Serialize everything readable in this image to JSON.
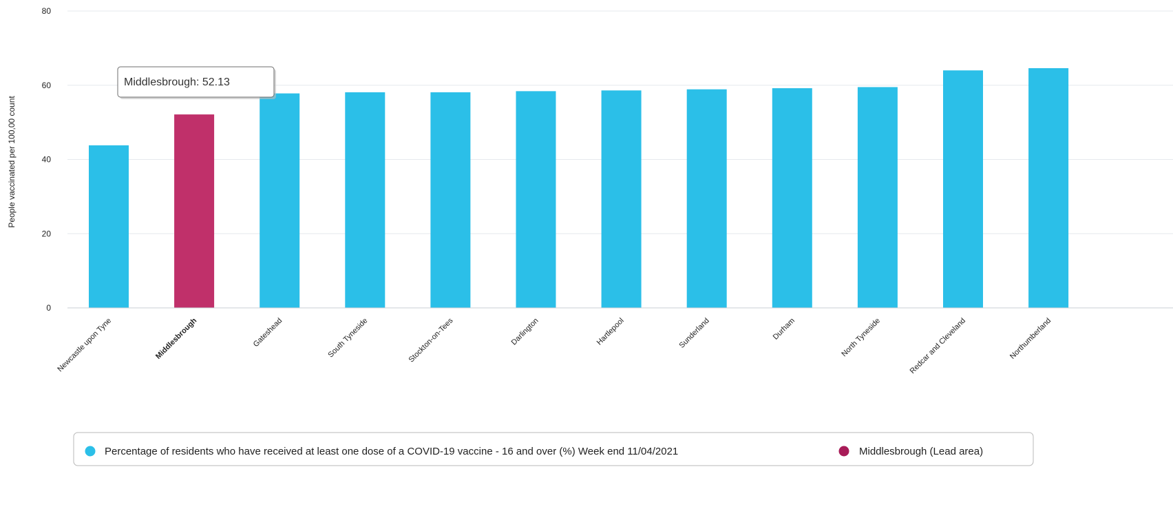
{
  "chart_data": {
    "type": "bar",
    "ylabel": "People vaccinated per 100,00 count",
    "ylim": [
      0,
      80
    ],
    "yticks": [
      "0",
      "20",
      "40",
      "60",
      "80"
    ],
    "ytick_values": [
      0,
      20,
      40,
      60,
      80
    ],
    "grid": true,
    "categories": [
      "Newcastle upon Tyne",
      "Middlesbrough",
      "Gateshead",
      "South Tyneside",
      "Stockton-on-Tees",
      "Darlington",
      "Hartlepool",
      "Sunderland",
      "Durham",
      "North Tyneside",
      "Redcar and Cleveland",
      "Northumberland"
    ],
    "values": [
      43.8,
      52.13,
      57.8,
      58.1,
      58.1,
      58.4,
      58.6,
      58.9,
      59.2,
      59.5,
      64.0,
      64.6
    ],
    "lead_area_index": 1,
    "series_color": "#2bbfe8",
    "lead_color": "#c0306a",
    "legend_lead_color": "#a81c58",
    "tooltip": {
      "text": "Middlesbrough: 52.13"
    },
    "legend": {
      "placement": "bottom",
      "items": [
        {
          "label": "Percentage of residents who have received at least one dose of a COVID-19 vaccine - 16 and over (%) Week end 11/04/2021",
          "color": "#2bbfe8"
        },
        {
          "label": "Middlesbrough (Lead area)",
          "color": "#a81c58"
        }
      ]
    }
  }
}
